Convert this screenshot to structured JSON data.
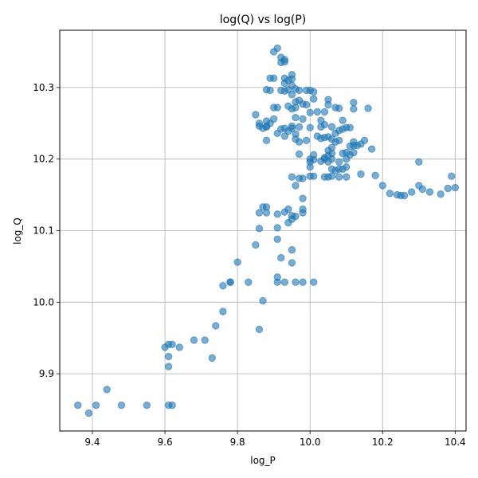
{
  "chart_data": {
    "type": "scatter",
    "title": "log(Q) vs log(P)",
    "xlabel": "log_P",
    "ylabel": "log_Q",
    "xlim": [
      9.31,
      10.43
    ],
    "ylim": [
      9.82,
      10.38
    ],
    "xticks": [
      9.4,
      9.6,
      9.8,
      10.0,
      10.2,
      10.4
    ],
    "xtick_labels": [
      "9.4",
      "9.6",
      "9.8",
      "10.0",
      "10.2",
      "10.4"
    ],
    "yticks": [
      9.9,
      10.0,
      10.1,
      10.2,
      10.3
    ],
    "ytick_labels": [
      "9.9",
      "10.0",
      "10.1",
      "10.2",
      "10.3"
    ],
    "grid": true,
    "color": "#1f77b4",
    "points": [
      [
        9.36,
        9.856
      ],
      [
        9.39,
        9.845
      ],
      [
        9.41,
        9.856
      ],
      [
        9.44,
        9.878
      ],
      [
        9.48,
        9.856
      ],
      [
        9.55,
        9.856
      ],
      [
        9.61,
        9.856
      ],
      [
        9.62,
        9.856
      ],
      [
        9.61,
        9.91
      ],
      [
        9.61,
        9.924
      ],
      [
        9.6,
        9.937
      ],
      [
        9.61,
        9.941
      ],
      [
        9.62,
        9.941
      ],
      [
        9.64,
        9.937
      ],
      [
        9.68,
        9.947
      ],
      [
        9.71,
        9.947
      ],
      [
        9.73,
        9.922
      ],
      [
        9.74,
        9.967
      ],
      [
        9.76,
        9.987
      ],
      [
        9.76,
        10.023
      ],
      [
        9.78,
        10.028
      ],
      [
        9.78,
        10.028
      ],
      [
        9.8,
        10.056
      ],
      [
        9.83,
        10.028
      ],
      [
        9.86,
        9.962
      ],
      [
        9.87,
        10.002
      ],
      [
        9.85,
        10.08
      ],
      [
        9.86,
        10.103
      ],
      [
        9.86,
        10.125
      ],
      [
        9.87,
        10.133
      ],
      [
        9.88,
        10.125
      ],
      [
        9.88,
        10.133
      ],
      [
        9.91,
        10.035
      ],
      [
        9.91,
        10.028
      ],
      [
        9.92,
        10.062
      ],
      [
        9.93,
        10.028
      ],
      [
        9.95,
        10.055
      ],
      [
        9.96,
        10.028
      ],
      [
        9.98,
        10.028
      ],
      [
        10.01,
        10.028
      ],
      [
        9.95,
        10.073
      ],
      [
        9.91,
        10.088
      ],
      [
        9.91,
        10.104
      ],
      [
        9.91,
        10.123
      ],
      [
        9.93,
        10.126
      ],
      [
        9.94,
        10.13
      ],
      [
        9.95,
        10.121
      ],
      [
        9.94,
        10.111
      ],
      [
        9.95,
        10.116
      ],
      [
        9.96,
        10.12
      ],
      [
        9.98,
        10.13
      ],
      [
        9.98,
        10.125
      ],
      [
        9.98,
        10.145
      ],
      [
        9.95,
        10.175
      ],
      [
        9.96,
        10.163
      ],
      [
        9.97,
        10.173
      ],
      [
        9.98,
        10.173
      ],
      [
        10.0,
        10.176
      ],
      [
        10.01,
        10.176
      ],
      [
        10.04,
        10.175
      ],
      [
        10.05,
        10.175
      ],
      [
        10.06,
        10.176
      ],
      [
        10.08,
        10.175
      ],
      [
        10.1,
        10.175
      ],
      [
        10.14,
        10.179
      ],
      [
        10.18,
        10.177
      ],
      [
        10.2,
        10.163
      ],
      [
        10.22,
        10.152
      ],
      [
        10.24,
        10.15
      ],
      [
        10.25,
        10.149
      ],
      [
        10.26,
        10.149
      ],
      [
        10.28,
        10.154
      ],
      [
        10.3,
        10.163
      ],
      [
        10.31,
        10.158
      ],
      [
        10.33,
        10.154
      ],
      [
        10.36,
        10.151
      ],
      [
        10.38,
        10.159
      ],
      [
        10.4,
        10.16
      ],
      [
        10.39,
        10.176
      ],
      [
        10.3,
        10.196
      ],
      [
        10.0,
        10.189
      ],
      [
        10.0,
        10.196
      ],
      [
        10.01,
        10.199
      ],
      [
        10.03,
        10.197
      ],
      [
        10.04,
        10.2
      ],
      [
        10.05,
        10.196
      ],
      [
        10.06,
        10.186
      ],
      [
        10.07,
        10.184
      ],
      [
        10.08,
        10.186
      ],
      [
        10.09,
        10.186
      ],
      [
        10.1,
        10.189
      ],
      [
        10.08,
        10.196
      ],
      [
        10.1,
        10.2
      ],
      [
        10.11,
        10.206
      ],
      [
        10.12,
        10.209
      ],
      [
        10.11,
        10.218
      ],
      [
        10.12,
        10.219
      ],
      [
        10.14,
        10.221
      ],
      [
        10.15,
        10.226
      ],
      [
        10.17,
        10.214
      ],
      [
        10.12,
        10.224
      ],
      [
        10.13,
        10.219
      ],
      [
        10.06,
        10.2
      ],
      [
        10.05,
        10.205
      ],
      [
        10.04,
        10.202
      ],
      [
        10.05,
        10.212
      ],
      [
        10.06,
        10.216
      ],
      [
        10.06,
        10.228
      ],
      [
        10.07,
        10.224
      ],
      [
        10.08,
        10.226
      ],
      [
        10.09,
        10.208
      ],
      [
        10.1,
        10.209
      ],
      [
        10.08,
        10.24
      ],
      [
        10.09,
        10.242
      ],
      [
        10.09,
        10.254
      ],
      [
        10.1,
        10.244
      ],
      [
        10.11,
        10.244
      ],
      [
        10.12,
        10.27
      ],
      [
        10.12,
        10.279
      ],
      [
        10.16,
        10.271
      ],
      [
        10.07,
        10.272
      ],
      [
        10.08,
        10.271
      ],
      [
        10.05,
        10.276
      ],
      [
        10.05,
        10.283
      ],
      [
        10.04,
        10.266
      ],
      [
        10.04,
        10.248
      ],
      [
        10.03,
        10.245
      ],
      [
        10.02,
        10.232
      ],
      [
        10.03,
        10.229
      ],
      [
        10.04,
        10.23
      ],
      [
        10.01,
        10.206
      ],
      [
        10.0,
        10.2
      ],
      [
        9.99,
        10.226
      ],
      [
        9.97,
        10.224
      ],
      [
        9.96,
        10.228
      ],
      [
        9.97,
        10.207
      ],
      [
        9.96,
        10.235
      ],
      [
        9.95,
        10.246
      ],
      [
        9.94,
        10.239
      ],
      [
        9.93,
        10.232
      ],
      [
        9.91,
        10.236
      ],
      [
        9.92,
        10.242
      ],
      [
        9.93,
        10.243
      ],
      [
        9.95,
        10.243
      ],
      [
        9.97,
        10.245
      ],
      [
        9.98,
        10.256
      ],
      [
        9.96,
        10.258
      ],
      [
        9.9,
        10.256
      ],
      [
        9.89,
        10.25
      ],
      [
        9.88,
        10.246
      ],
      [
        9.88,
        10.226
      ],
      [
        9.87,
        10.243
      ],
      [
        9.86,
        10.246
      ],
      [
        9.86,
        10.25
      ],
      [
        9.85,
        10.262
      ],
      [
        9.88,
        10.245
      ],
      [
        9.88,
        10.253
      ],
      [
        9.9,
        10.272
      ],
      [
        9.91,
        10.272
      ],
      [
        9.94,
        10.274
      ],
      [
        9.95,
        10.27
      ],
      [
        9.96,
        10.272
      ],
      [
        9.96,
        10.28
      ],
      [
        9.98,
        10.277
      ],
      [
        9.99,
        10.276
      ],
      [
        10.0,
        10.244
      ],
      [
        10.0,
        10.265
      ],
      [
        10.02,
        10.266
      ],
      [
        10.01,
        10.284
      ],
      [
        10.01,
        10.294
      ],
      [
        10.0,
        10.296
      ],
      [
        9.99,
        10.296
      ],
      [
        9.97,
        10.296
      ],
      [
        9.95,
        10.29
      ],
      [
        9.94,
        10.297
      ],
      [
        9.93,
        10.295
      ],
      [
        9.92,
        10.296
      ],
      [
        9.89,
        10.296
      ],
      [
        9.88,
        10.297
      ],
      [
        9.89,
        10.313
      ],
      [
        9.9,
        10.313
      ],
      [
        9.93,
        10.313
      ],
      [
        9.94,
        10.31
      ],
      [
        9.93,
        10.306
      ],
      [
        9.95,
        10.318
      ],
      [
        9.95,
        10.312
      ],
      [
        9.95,
        10.303
      ],
      [
        9.96,
        10.298
      ],
      [
        9.97,
        10.282
      ],
      [
        9.9,
        10.35
      ],
      [
        9.91,
        10.355
      ],
      [
        9.92,
        10.342
      ],
      [
        9.93,
        10.339
      ],
      [
        9.92,
        10.335
      ],
      [
        9.93,
        10.336
      ],
      [
        10.06,
        10.245
      ],
      [
        10.07,
        10.236
      ],
      [
        10.03,
        10.254
      ],
      [
        10.05,
        10.231
      ],
      [
        10.06,
        10.208
      ]
    ]
  }
}
